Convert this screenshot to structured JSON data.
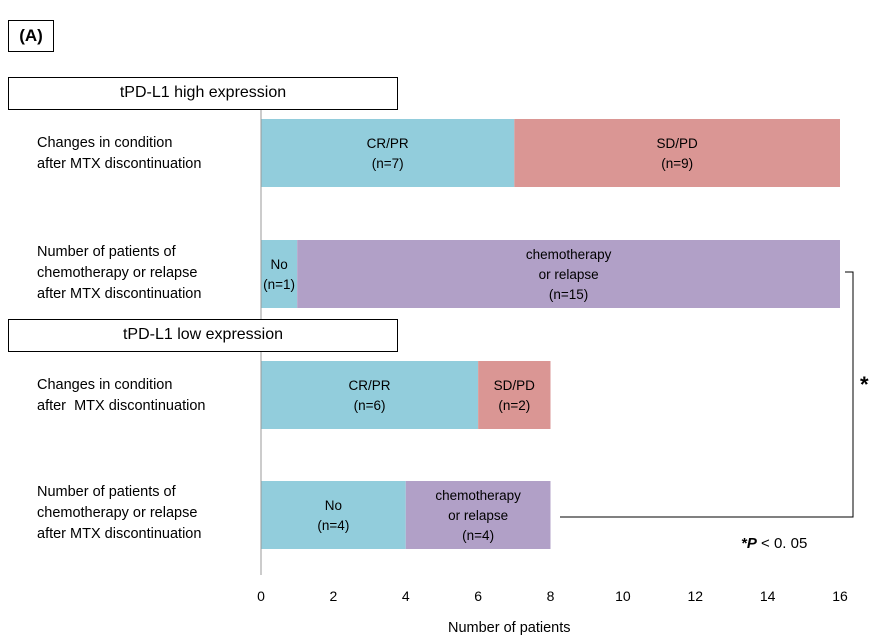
{
  "panel_label": "(A)",
  "groups": {
    "high": "tPD-L1 high expression",
    "low": "tPD-L1 low expression"
  },
  "row_labels": {
    "r0": "Changes in condition\nafter MTX discontinuation",
    "r1": "Number of patients of\nchemotherapy or relapse\nafter MTX discontinuation",
    "r2": "Changes in condition\nafter  MTX discontinuation",
    "r3": "Number of patients of\nchemotherapy or relapse\nafter MTX discontinuation"
  },
  "significance": {
    "marker": "*",
    "note_prefix": "*P",
    "note_suffix": " < 0. 05"
  },
  "colors": {
    "blue": "#92CDDC",
    "red": "#DA9694",
    "purple": "#B1A0C7"
  },
  "chart_data": {
    "type": "bar",
    "orientation": "horizontal",
    "stacked": true,
    "xlabel": "Number of patients",
    "xlim": [
      0,
      16
    ],
    "xticks": [
      0,
      2,
      4,
      6,
      8,
      10,
      12,
      14,
      16
    ],
    "rows": [
      {
        "group": "tPD-L1 high expression",
        "segments": [
          {
            "value": 7,
            "label": [
              "CR/PR",
              "(n=7)"
            ],
            "color": "blue"
          },
          {
            "value": 9,
            "label": [
              "SD/PD",
              "(n=9)"
            ],
            "color": "red"
          }
        ]
      },
      {
        "group": "tPD-L1 high expression",
        "segments": [
          {
            "value": 1,
            "label": [
              "No",
              "(n=1)"
            ],
            "color": "blue"
          },
          {
            "value": 15,
            "label": [
              "chemotherapy",
              "or relapse",
              "(n=15)"
            ],
            "color": "purple"
          }
        ]
      },
      {
        "group": "tPD-L1 low expression",
        "segments": [
          {
            "value": 6,
            "label": [
              "CR/PR",
              "(n=6)"
            ],
            "color": "blue"
          },
          {
            "value": 2,
            "label": [
              "SD/PD",
              "(n=2)"
            ],
            "color": "red"
          }
        ]
      },
      {
        "group": "tPD-L1 low expression",
        "segments": [
          {
            "value": 4,
            "label": [
              "No",
              "(n=4)"
            ],
            "color": "blue"
          },
          {
            "value": 4,
            "label": [
              "chemotherapy",
              "or relapse",
              "(n=4)"
            ],
            "color": "purple"
          }
        ]
      }
    ]
  }
}
